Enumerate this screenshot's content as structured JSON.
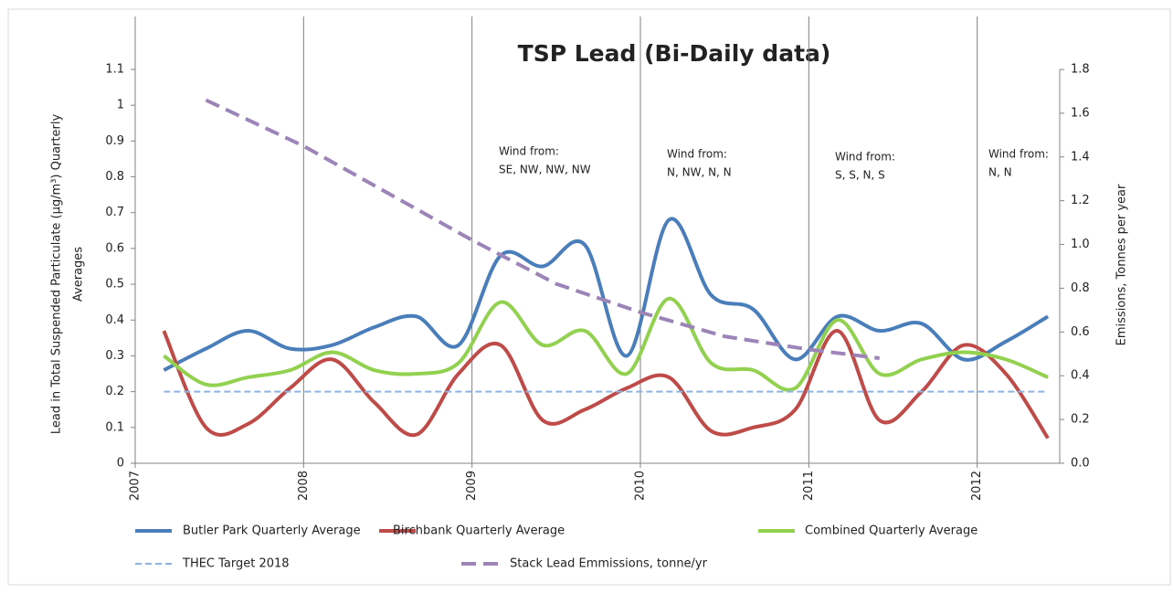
{
  "chart_data": {
    "type": "line",
    "title": "TSP Lead (Bi-Daily data)",
    "ylabel": [
      "Lead in Total Suspended Particulate  (µg/m³)  Quarterly",
      "Averages"
    ],
    "y2label": "Emissions, Tonnes per year",
    "x": [
      2007.17,
      2007.42,
      2007.67,
      2007.92,
      2008.17,
      2008.42,
      2008.67,
      2008.92,
      2009.17,
      2009.42,
      2009.67,
      2009.92,
      2010.17,
      2010.42,
      2010.67,
      2010.92,
      2011.17,
      2011.42,
      2011.67,
      2011.92,
      2012.17,
      2012.42
    ],
    "xlim": [
      2007,
      2012.49
    ],
    "xticks": [
      2007,
      2008,
      2009,
      2010,
      2011,
      2012
    ],
    "ylim": [
      0,
      1.1
    ],
    "yticks": [
      0,
      0.1,
      0.2,
      0.3,
      0.4,
      0.5,
      0.6,
      0.7,
      0.8,
      0.9,
      1,
      1.1
    ],
    "y2lim": [
      0,
      1.8
    ],
    "y2ticks": [
      {
        "value": 0,
        "label": "0.0"
      },
      0.2,
      0.4,
      0.6,
      0.8,
      {
        "value": 1,
        "label": "1.0"
      },
      1.2,
      1.4,
      1.6,
      1.8
    ],
    "xgrid": true,
    "legend": "bottom",
    "series": [
      {
        "name": "Butler Park Quarterly Average",
        "color": "#4a7ebb",
        "values": [
          0.26,
          0.32,
          0.37,
          0.32,
          0.33,
          0.38,
          0.41,
          0.33,
          0.58,
          0.55,
          0.61,
          0.3,
          0.68,
          0.47,
          0.43,
          0.29,
          0.41,
          0.37,
          0.39,
          0.29,
          0.34,
          0.41
        ]
      },
      {
        "name": "Birchbank Quarterly Average",
        "color": "#be4b48",
        "values": [
          0.37,
          0.1,
          0.11,
          0.21,
          0.29,
          0.17,
          0.08,
          0.25,
          0.33,
          0.12,
          0.15,
          0.21,
          0.24,
          0.09,
          0.1,
          0.15,
          0.37,
          0.12,
          0.2,
          0.33,
          0.25,
          0.07
        ]
      },
      {
        "name": "Combined Quarterly Average",
        "color": "#92d050",
        "values": [
          0.3,
          0.22,
          0.24,
          0.26,
          0.31,
          0.26,
          0.25,
          0.28,
          0.45,
          0.33,
          0.37,
          0.25,
          0.46,
          0.28,
          0.26,
          0.21,
          0.4,
          0.25,
          0.29,
          0.31,
          0.29,
          0.24
        ]
      },
      {
        "name": "THEC Target 2018",
        "color": "#8db3e2",
        "dashed": true,
        "values": [
          0.2,
          0.2,
          0.2,
          0.2,
          0.2,
          0.2,
          0.2,
          0.2,
          0.2,
          0.2,
          0.2,
          0.2,
          0.2,
          0.2,
          0.2,
          0.2,
          0.2,
          0.2,
          0.2,
          0.2,
          0.2,
          0.2
        ]
      },
      {
        "name": "Stack Lead Emmissions, tonne/yr",
        "color": "#9c84b8",
        "dashed": true,
        "axis": "y2",
        "x": [
          2007.42,
          2008.0,
          2009.0,
          2009.5,
          2010.0,
          2010.5,
          2011.0,
          2011.42
        ],
        "values": [
          1.66,
          1.45,
          1.02,
          0.82,
          0.69,
          0.58,
          0.52,
          0.48
        ]
      }
    ],
    "annotations": [
      {
        "text": "Wind from:",
        "detail": "SE, NW, NW, NW"
      },
      {
        "text": "Wind from:",
        "detail": "N,  NW, N,  N"
      },
      {
        "text": "Wind from:",
        "detail": "S,  S,  N,  S"
      },
      {
        "text": "Wind from:",
        "detail": "N,   N"
      }
    ]
  }
}
